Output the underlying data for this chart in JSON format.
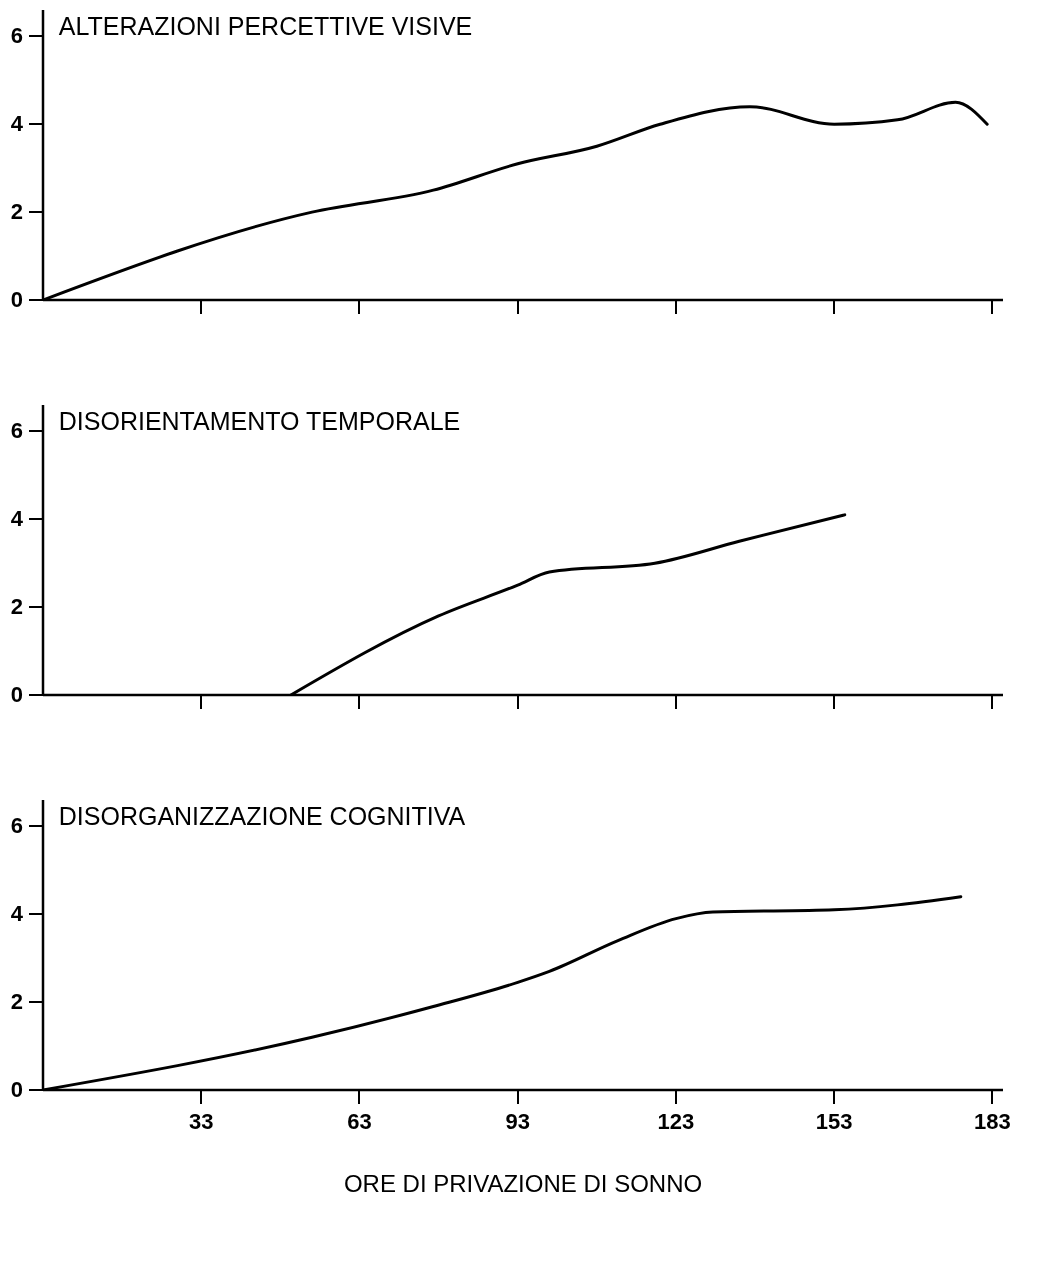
{
  "chart_data": [
    {
      "type": "line",
      "title": "ALTERAZIONI PERCETTIVE VISIVE",
      "x": [
        3,
        54,
        77,
        93,
        108,
        120,
        137,
        153,
        165,
        176,
        182
      ],
      "series": [
        {
          "color": "#000000",
          "values": [
            0,
            2.0,
            2.5,
            3.1,
            3.5,
            4.0,
            4.4,
            4.0,
            4.1,
            4.5,
            4.0
          ]
        }
      ],
      "xlim": [
        3,
        185
      ],
      "xticks": [
        33,
        63,
        93,
        123,
        153,
        183
      ],
      "ylim": [
        0,
        6.6
      ],
      "yticks": [
        0,
        2,
        4,
        6
      ],
      "tick_labels": "y",
      "grid": false
    },
    {
      "type": "line",
      "title": "DISORIENTAMENTO TEMPORALE",
      "x": [
        50,
        78,
        93,
        99,
        119,
        135,
        155
      ],
      "series": [
        {
          "color": "#000000",
          "values": [
            0,
            1.8,
            2.5,
            2.8,
            3.0,
            3.5,
            4.1
          ]
        }
      ],
      "xlim": [
        3,
        185
      ],
      "xticks": [
        33,
        63,
        93,
        123,
        153,
        183
      ],
      "ylim": [
        0,
        6.6
      ],
      "yticks": [
        0,
        2,
        4,
        6
      ],
      "tick_labels": "y",
      "grid": false
    },
    {
      "type": "line",
      "title": "DISORGANIZZAZIONE COGNITIVA",
      "xlabel": "ORE DI PRIVAZIONE DI SONNO",
      "x": [
        3,
        54,
        77,
        93,
        99,
        112,
        123,
        130,
        153,
        177
      ],
      "series": [
        {
          "color": "#000000",
          "values": [
            0,
            1.2,
            1.9,
            2.45,
            2.7,
            3.4,
            3.9,
            4.05,
            4.1,
            4.4
          ]
        }
      ],
      "xlim": [
        3,
        185
      ],
      "xticks": [
        33,
        63,
        93,
        123,
        153,
        183
      ],
      "ylim": [
        0,
        6.6
      ],
      "yticks": [
        0,
        2,
        4,
        6
      ],
      "grid": false
    }
  ]
}
